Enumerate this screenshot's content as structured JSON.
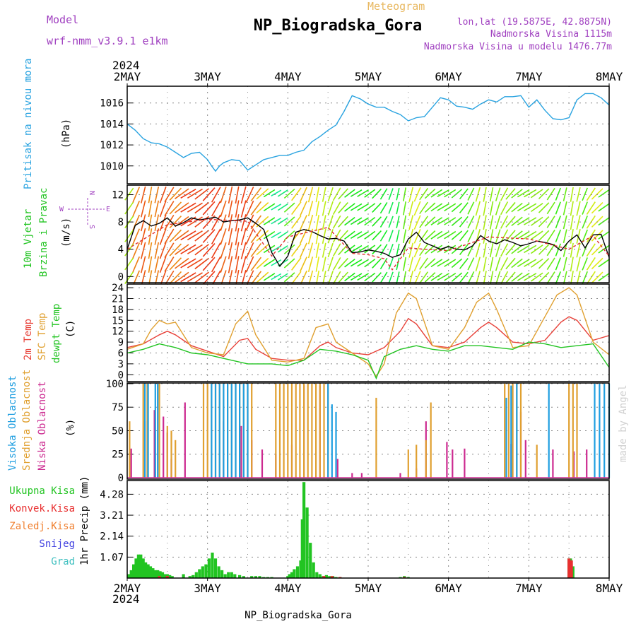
{
  "header": {
    "model_label": "Model",
    "model_name": "wrf-nmm_v3.9.1 e1km",
    "meteogram_label": "Meteogram",
    "station_title": "NP_Biogradska_Gora",
    "lonlat": "lon,lat (19.5875E, 42.8875N)",
    "altitude": "Nadmorska Visina 1115m",
    "model_altitude": "Nadmorska Visina u modelu 1476.77m",
    "footer_station": "NP_Biogradska_Gora",
    "watermark": "made by Angel"
  },
  "time_axis": {
    "year": "2024",
    "labels": [
      "2MAY",
      "3MAY",
      "4MAY",
      "5MAY",
      "6MAY",
      "7MAY",
      "8MAY"
    ]
  },
  "colors": {
    "pressure": "#29a3e0",
    "wind_speed": "#000000",
    "wind_gust": "#e03030",
    "temp_2m": "#e8423a",
    "temp_sfc": "#e0a030",
    "temp_dew": "#22c422",
    "cloud_high": "#1f9ee0",
    "cloud_mid": "#e0a030",
    "cloud_low": "#cc2a90",
    "precip_total": "#22c422",
    "precip_conv": "#e83030",
    "precip_frozen": "#f08030",
    "precip_snow": "#4040e0",
    "precip_hail": "#40c0c0",
    "title_purple": "#a040c0",
    "title_gold": "#e8b860"
  },
  "chart_data": [
    {
      "type": "line",
      "panel": "pressure",
      "ylabels": [
        "Pritisak na nivou mora",
        "(hPa)"
      ],
      "yticks": [
        1010,
        1012,
        1014,
        1016
      ],
      "ylim": [
        1008.3,
        1017.6
      ],
      "xlim": [
        0,
        6
      ],
      "grid": true,
      "series": [
        {
          "x": [
            0,
            0.1,
            0.2,
            0.3,
            0.4,
            0.5,
            0.6,
            0.7,
            0.8,
            0.9,
            1.0,
            1.05,
            1.1,
            1.15,
            1.2,
            1.3,
            1.4,
            1.5,
            1.6,
            1.7,
            1.8,
            1.9,
            2.0,
            2.1,
            2.2,
            2.3,
            2.4,
            2.5,
            2.6,
            2.7,
            2.8,
            2.9,
            3.0,
            3.1,
            3.2,
            3.3,
            3.4,
            3.5,
            3.6,
            3.7,
            3.8,
            3.9,
            4.0,
            4.1,
            4.2,
            4.3,
            4.4,
            4.5,
            4.6,
            4.7,
            4.8,
            4.9,
            5.0,
            5.1,
            5.2,
            5.3,
            5.4,
            5.5,
            5.6,
            5.7,
            5.8,
            5.9,
            6.0
          ],
          "values": [
            1014.0,
            1013.4,
            1012.6,
            1012.2,
            1012.1,
            1011.8,
            1011.3,
            1010.8,
            1011.2,
            1011.3,
            1010.6,
            1010.0,
            1009.5,
            1010.0,
            1010.3,
            1010.6,
            1010.5,
            1009.6,
            1010.1,
            1010.6,
            1010.8,
            1011.0,
            1011.0,
            1011.3,
            1011.5,
            1012.3,
            1012.8,
            1013.4,
            1013.9,
            1015.2,
            1016.7,
            1016.4,
            1015.9,
            1015.6,
            1015.6,
            1015.2,
            1014.9,
            1014.3,
            1014.6,
            1014.7,
            1015.6,
            1016.5,
            1016.3,
            1015.7,
            1015.6,
            1015.4,
            1015.9,
            1016.3,
            1016.1,
            1016.6,
            1016.6,
            1016.7,
            1015.6,
            1016.3,
            1015.3,
            1014.5,
            1014.4,
            1014.6,
            1016.3,
            1016.9,
            1016.9,
            1016.5,
            1015.8
          ]
        }
      ]
    },
    {
      "type": "line",
      "panel": "wind",
      "ylabels": [
        "10m Vjetar",
        "Brzina i Pravac",
        "(m/s)"
      ],
      "compass": [
        "N",
        "W",
        "E",
        "S"
      ],
      "yticks": [
        0,
        4,
        8,
        12
      ],
      "ylim": [
        -0.9,
        13.4
      ],
      "xlim": [
        0,
        6
      ],
      "grid": true,
      "series": [
        {
          "name": "wind_speed",
          "x": [
            0,
            0.1,
            0.2,
            0.3,
            0.4,
            0.5,
            0.6,
            0.7,
            0.8,
            0.9,
            1.0,
            1.1,
            1.2,
            1.3,
            1.4,
            1.5,
            1.6,
            1.7,
            1.8,
            1.9,
            2.0,
            2.1,
            2.2,
            2.3,
            2.4,
            2.5,
            2.6,
            2.7,
            2.8,
            2.9,
            3.0,
            3.1,
            3.2,
            3.3,
            3.4,
            3.5,
            3.6,
            3.7,
            3.8,
            3.9,
            4.0,
            4.1,
            4.2,
            4.3,
            4.4,
            4.5,
            4.6,
            4.7,
            4.8,
            4.9,
            5.0,
            5.1,
            5.2,
            5.3,
            5.4,
            5.5,
            5.6,
            5.7,
            5.8,
            5.9,
            6.0
          ],
          "values": [
            4.0,
            7.5,
            8.2,
            7.4,
            7.8,
            8.6,
            7.4,
            7.9,
            8.6,
            8.3,
            8.5,
            8.7,
            8.0,
            8.2,
            8.3,
            8.6,
            7.8,
            6.9,
            3.5,
            1.5,
            3.0,
            6.5,
            6.9,
            6.6,
            6.0,
            5.5,
            5.6,
            5.2,
            3.5,
            3.6,
            3.9,
            3.7,
            3.4,
            2.8,
            3.2,
            5.5,
            6.5,
            5.0,
            4.5,
            4.0,
            4.4,
            4.0,
            3.9,
            4.5,
            6.0,
            5.2,
            4.8,
            5.4,
            5.0,
            4.5,
            4.8,
            5.2,
            5.0,
            4.7,
            3.8,
            5.2,
            6.1,
            4.2,
            6.1,
            6.2,
            2.8
          ]
        },
        {
          "name": "wind_gust",
          "x": [
            0,
            0.5,
            1.0,
            1.5,
            1.8,
            2.0,
            2.5,
            2.8,
            3.0,
            3.2,
            3.3,
            3.5,
            3.7,
            4.0,
            4.5,
            5.0,
            5.5,
            5.8,
            6.0
          ],
          "values": [
            4.0,
            7.6,
            8.4,
            8.1,
            3.0,
            5.8,
            7.2,
            3.4,
            3.2,
            2.6,
            1.0,
            4.2,
            4.0,
            3.8,
            5.8,
            5.5,
            4.0,
            6.0,
            3.0
          ]
        }
      ]
    },
    {
      "type": "line",
      "panel": "temperature",
      "ylabels": [
        "2m Temp",
        "SFC Temp",
        "dewpt Temp",
        "(C)"
      ],
      "yticks": [
        0,
        3,
        6,
        9,
        12,
        15,
        18,
        21,
        24
      ],
      "ylim": [
        -1.9,
        25.0
      ],
      "xlim": [
        0,
        6
      ],
      "grid": true,
      "series": [
        {
          "name": "2m Temp",
          "x": [
            0,
            0.2,
            0.4,
            0.5,
            0.6,
            0.8,
            1.0,
            1.2,
            1.4,
            1.5,
            1.6,
            1.8,
            2.0,
            2.2,
            2.4,
            2.5,
            2.6,
            2.8,
            3.0,
            3.2,
            3.4,
            3.5,
            3.6,
            3.8,
            4.0,
            4.2,
            4.4,
            4.5,
            4.6,
            4.8,
            5.0,
            5.2,
            5.4,
            5.5,
            5.6,
            5.8,
            6.0
          ],
          "values": [
            7.5,
            8.5,
            11.0,
            12.0,
            11.0,
            8.0,
            6.5,
            5.0,
            9.5,
            10.0,
            7.0,
            4.5,
            4.0,
            4.0,
            8.0,
            9.0,
            7.5,
            6.0,
            5.5,
            7.5,
            12.0,
            15.5,
            14.0,
            8.0,
            7.5,
            9.0,
            13.0,
            14.5,
            13.0,
            9.0,
            8.5,
            9.5,
            14.5,
            16.0,
            15.0,
            9.5,
            10.8
          ]
        },
        {
          "name": "SFC Temp",
          "x": [
            0,
            0.2,
            0.3,
            0.4,
            0.5,
            0.6,
            0.8,
            1.0,
            1.2,
            1.35,
            1.5,
            1.6,
            1.8,
            2.0,
            2.2,
            2.35,
            2.5,
            2.6,
            2.8,
            3.0,
            3.1,
            3.2,
            3.35,
            3.5,
            3.6,
            3.8,
            4.0,
            4.2,
            4.35,
            4.5,
            4.6,
            4.8,
            5.0,
            5.2,
            5.35,
            5.5,
            5.6,
            5.8,
            6.0
          ],
          "values": [
            7.0,
            8.5,
            12.5,
            15.0,
            14.0,
            14.5,
            7.5,
            6.0,
            5.5,
            14.0,
            17.5,
            11.0,
            4.0,
            3.5,
            4.5,
            13.0,
            14.0,
            9.0,
            6.0,
            3.0,
            -0.5,
            3.0,
            17.0,
            22.5,
            21.0,
            8.0,
            7.0,
            13.0,
            20.0,
            22.5,
            18.0,
            7.5,
            8.0,
            16.0,
            22.0,
            24.0,
            22.0,
            9.0,
            5.5
          ]
        },
        {
          "name": "dewpt Temp",
          "x": [
            0,
            0.2,
            0.4,
            0.6,
            0.8,
            1.0,
            1.2,
            1.5,
            1.8,
            2.0,
            2.2,
            2.4,
            2.6,
            2.8,
            3.0,
            3.1,
            3.2,
            3.4,
            3.6,
            3.8,
            4.0,
            4.2,
            4.4,
            4.6,
            4.8,
            5.0,
            5.2,
            5.4,
            5.6,
            5.8,
            6.0
          ],
          "values": [
            6.0,
            7.0,
            8.5,
            7.5,
            6.0,
            5.5,
            4.5,
            3.0,
            3.0,
            2.5,
            4.0,
            7.0,
            6.5,
            5.5,
            4.0,
            -1.0,
            5.0,
            7.0,
            8.0,
            7.0,
            6.5,
            8.0,
            8.0,
            7.5,
            7.0,
            9.0,
            8.5,
            7.5,
            8.0,
            8.5,
            2.0
          ]
        }
      ]
    },
    {
      "type": "bar",
      "panel": "clouds",
      "ylabels": [
        "Visoka Oblacnost",
        "Srednja Oblacnost",
        "Niska Oblacnost",
        "(%)"
      ],
      "yticks": [
        0,
        25,
        50,
        75,
        100
      ],
      "ylim": [
        -1.5,
        100.7
      ],
      "xlim": [
        0,
        6
      ],
      "grid": true,
      "series": [
        {
          "name": "Niska Oblacnost",
          "x": [
            0.05,
            0.22,
            0.34,
            0.45,
            0.5,
            0.55,
            0.72,
            1.2,
            1.42,
            1.55,
            1.68,
            1.85,
            2.05,
            2.2,
            2.4,
            2.62,
            2.8,
            2.92,
            3.4,
            3.6,
            3.72,
            3.98,
            4.05,
            4.2,
            4.78,
            4.9,
            4.96,
            5.3,
            5.56,
            5.72
          ],
          "values": [
            31,
            60,
            72,
            65,
            48,
            20,
            80,
            60,
            55,
            40,
            30,
            25,
            35,
            98,
            98,
            20,
            5,
            5,
            5,
            10,
            60,
            38,
            30,
            31,
            36,
            70,
            40,
            30,
            28,
            30
          ]
        },
        {
          "name": "Srednja Oblacnost",
          "x": [
            0.03,
            0.2,
            0.25,
            0.4,
            0.5,
            0.55,
            0.6,
            0.95,
            1.0,
            1.05,
            1.1,
            1.15,
            1.2,
            1.25,
            1.3,
            1.35,
            1.4,
            1.45,
            1.5,
            1.55,
            1.85,
            1.9,
            1.95,
            2.0,
            2.05,
            2.1,
            2.15,
            2.2,
            2.25,
            2.3,
            2.35,
            2.4,
            2.45,
            2.5,
            3.1,
            3.5,
            3.6,
            3.72,
            3.78,
            4.7,
            4.75,
            4.8,
            4.85,
            4.9,
            5.1,
            5.5,
            5.55,
            5.6
          ],
          "values": [
            60,
            100,
            100,
            100,
            55,
            50,
            40,
            100,
            100,
            100,
            100,
            100,
            100,
            100,
            100,
            100,
            100,
            100,
            100,
            100,
            100,
            100,
            100,
            100,
            100,
            100,
            100,
            100,
            100,
            100,
            100,
            100,
            100,
            100,
            85,
            30,
            35,
            40,
            80,
            100,
            100,
            100,
            100,
            100,
            35,
            100,
            100,
            100
          ]
        },
        {
          "name": "Visoka Oblacnost",
          "x": [
            0.22,
            0.26,
            0.35,
            0.38,
            1.05,
            1.1,
            1.15,
            1.2,
            1.25,
            1.3,
            1.35,
            1.4,
            1.45,
            1.5,
            2.5,
            2.55,
            2.6,
            4.72,
            4.78,
            4.85,
            5.25,
            5.82,
            5.88,
            5.94,
            6.0
          ],
          "values": [
            100,
            100,
            100,
            100,
            100,
            100,
            100,
            100,
            100,
            100,
            100,
            100,
            100,
            100,
            100,
            78,
            70,
            85,
            98,
            100,
            100,
            100,
            100,
            100,
            100
          ]
        }
      ]
    },
    {
      "type": "bar",
      "panel": "precipitation",
      "ylabels": [
        "1hr Precip (mm)"
      ],
      "legend": [
        "Ukupna Kisa",
        "Konvek.Kisa",
        "Zaledj.Kisa",
        "Snijeg",
        "Grad"
      ],
      "yticks": [
        1.07,
        2.14,
        3.21,
        4.28
      ],
      "ylim": [
        0,
        4.98
      ],
      "xlim": [
        0,
        6
      ],
      "grid": true,
      "series": [
        {
          "name": "Ukupna Kisa",
          "x": [
            0.02,
            0.05,
            0.08,
            0.11,
            0.14,
            0.17,
            0.2,
            0.23,
            0.26,
            0.29,
            0.32,
            0.35,
            0.38,
            0.41,
            0.44,
            0.47,
            0.5,
            0.53,
            0.56,
            0.7,
            0.78,
            0.82,
            0.86,
            0.9,
            0.94,
            0.98,
            1.02,
            1.06,
            1.1,
            1.14,
            1.18,
            1.22,
            1.26,
            1.3,
            1.34,
            1.4,
            1.45,
            1.55,
            1.6,
            1.65,
            1.7,
            1.75,
            1.8,
            2.0,
            2.02,
            2.05,
            2.08,
            2.12,
            2.16,
            2.18,
            2.2,
            2.24,
            2.28,
            2.32,
            2.36,
            2.4,
            2.44,
            2.48,
            2.52,
            2.56,
            2.6,
            2.65,
            3.4,
            3.45,
            3.5,
            5.5,
            5.52,
            5.55
          ],
          "values": [
            0.2,
            0.4,
            0.7,
            1.0,
            1.2,
            1.2,
            1.0,
            0.8,
            0.7,
            0.6,
            0.5,
            0.4,
            0.4,
            0.35,
            0.3,
            0.2,
            0.2,
            0.15,
            0.1,
            0.2,
            0.1,
            0.15,
            0.3,
            0.45,
            0.6,
            0.7,
            1.0,
            1.3,
            1.0,
            0.6,
            0.4,
            0.2,
            0.3,
            0.3,
            0.2,
            0.15,
            0.1,
            0.1,
            0.1,
            0.1,
            0.05,
            0.05,
            0.05,
            0.1,
            0.2,
            0.3,
            0.45,
            0.6,
            0.9,
            3.0,
            4.9,
            3.6,
            1.8,
            0.8,
            0.3,
            0.2,
            0.1,
            0.15,
            0.1,
            0.1,
            0.05,
            0.05,
            0.05,
            0.1,
            0.05,
            1.0,
            1.0,
            0.6
          ]
        },
        {
          "name": "Konvek.Kisa",
          "x": [
            0.4,
            0.5,
            2.45,
            2.55,
            2.65,
            3.45,
            5.5,
            5.53
          ],
          "values": [
            0.1,
            0.1,
            0.1,
            0.1,
            0.05,
            0.05,
            1.0,
            0.9
          ]
        }
      ]
    }
  ]
}
